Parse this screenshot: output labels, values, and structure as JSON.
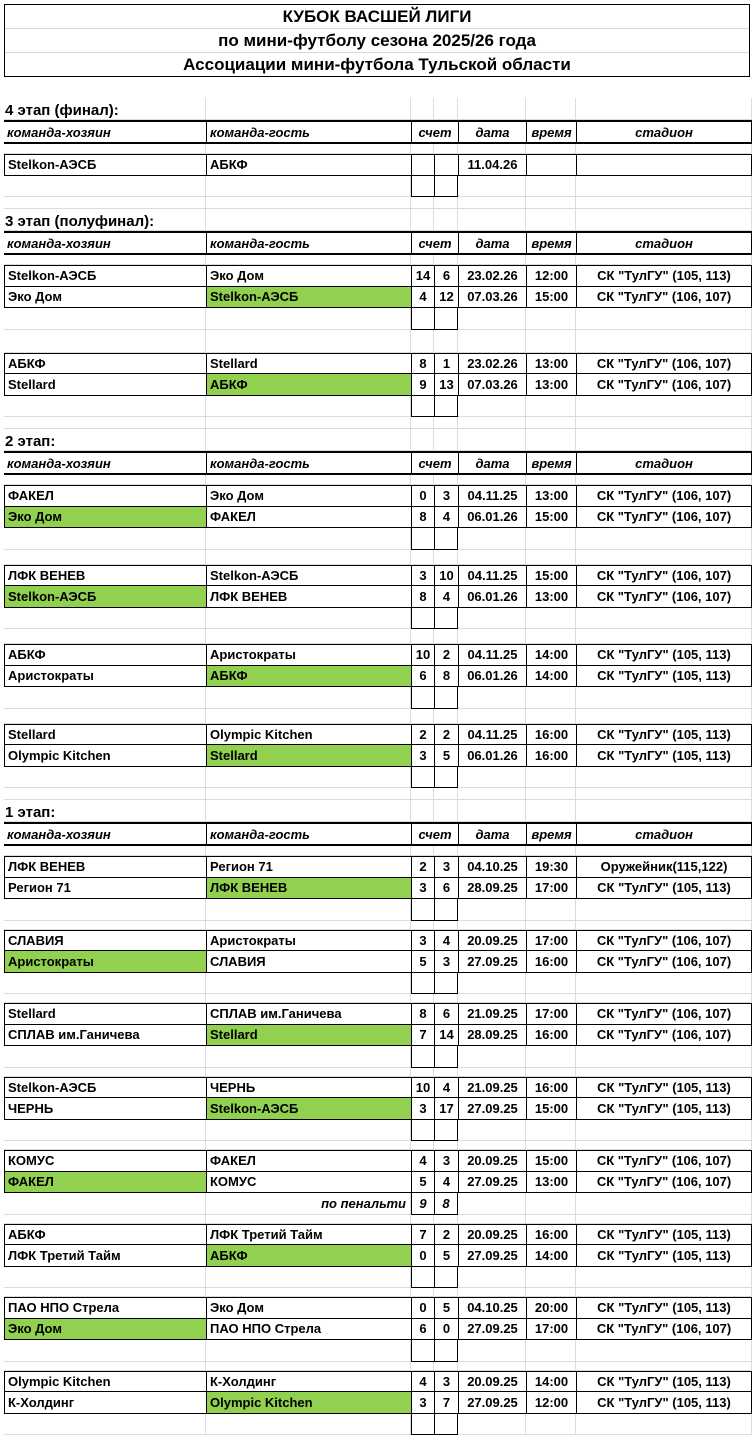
{
  "title": {
    "line1": "КУБОК ВАСШЕЙ ЛИГИ",
    "line2": "по мини-футболу сезона 2025/26 года",
    "line3": "Ассоциации мини-футбола Тульской области"
  },
  "columns": {
    "host": "команда-хозяин",
    "guest": "команда-гость",
    "score": "счет",
    "date": "дата",
    "time": "время",
    "stadium": "стадион"
  },
  "penalty_label": "по пенальти",
  "colors": {
    "winner_highlight": "#92D050",
    "gridline": "#dcdcdc",
    "border": "#000000"
  },
  "sections": [
    {
      "label": "4 этап (финал):",
      "pairs": [
        {
          "matches": [
            {
              "host": "Stelkon-АЭСБ",
              "guest": "АБКФ",
              "s1": "",
              "s2": "",
              "date": "11.04.26",
              "time": "",
              "stadium": "",
              "hl": null
            }
          ],
          "after": "scorebox"
        }
      ]
    },
    {
      "label": "3 этап (полуфинал):",
      "pairs": [
        {
          "matches": [
            {
              "host": "Stelkon-АЭСБ",
              "guest": "Эко Дом",
              "s1": "14",
              "s2": "6",
              "date": "23.02.26",
              "time": "12:00",
              "stadium": "СК \"ТулГУ\" (105, 113)",
              "hl": null
            },
            {
              "host": "Эко Дом",
              "guest": "Stelkon-АЭСБ",
              "s1": "4",
              "s2": "12",
              "date": "07.03.26",
              "time": "15:00",
              "stadium": "СК \"ТулГУ\" (106, 107)",
              "hl": "guest"
            }
          ],
          "after": "scorebox"
        },
        {
          "matches": [
            {
              "host": "АБКФ",
              "guest": "Stellard",
              "s1": "8",
              "s2": "1",
              "date": "23.02.26",
              "time": "13:00",
              "stadium": "СК \"ТулГУ\" (106, 107)",
              "hl": null
            },
            {
              "host": "Stellard",
              "guest": "АБКФ",
              "s1": "9",
              "s2": "13",
              "date": "07.03.26",
              "time": "13:00",
              "stadium": "СК \"ТулГУ\" (106, 107)",
              "hl": "guest"
            }
          ],
          "after": "scorebox"
        }
      ]
    },
    {
      "label": "2 этап:",
      "pairs": [
        {
          "matches": [
            {
              "host": "ФАКЕЛ",
              "guest": "Эко Дом",
              "s1": "0",
              "s2": "3",
              "date": "04.11.25",
              "time": "13:00",
              "stadium": "СК \"ТулГУ\" (106, 107)",
              "hl": null
            },
            {
              "host": "Эко Дом",
              "guest": "ФАКЕЛ",
              "s1": "8",
              "s2": "4",
              "date": "06.01.26",
              "time": "15:00",
              "stadium": "СК \"ТулГУ\" (106, 107)",
              "hl": "host"
            }
          ],
          "after": "scorebox"
        },
        {
          "matches": [
            {
              "host": "ЛФК ВЕНЕВ",
              "guest": "Stelkon-АЭСБ",
              "s1": "3",
              "s2": "10",
              "date": "04.11.25",
              "time": "15:00",
              "stadium": "СК \"ТулГУ\" (106, 107)",
              "hl": null
            },
            {
              "host": "Stelkon-АЭСБ",
              "guest": "ЛФК ВЕНЕВ",
              "s1": "8",
              "s2": "4",
              "date": "06.01.26",
              "time": "13:00",
              "stadium": "СК \"ТулГУ\" (106, 107)",
              "hl": "host"
            }
          ],
          "after": "scorebox"
        },
        {
          "matches": [
            {
              "host": "АБКФ",
              "guest": "Аристократы",
              "s1": "10",
              "s2": "2",
              "date": "04.11.25",
              "time": "14:00",
              "stadium": "СК \"ТулГУ\" (105, 113)",
              "hl": null
            },
            {
              "host": "Аристократы",
              "guest": "АБКФ",
              "s1": "6",
              "s2": "8",
              "date": "06.01.26",
              "time": "14:00",
              "stadium": "СК \"ТулГУ\" (105, 113)",
              "hl": "guest"
            }
          ],
          "after": "scorebox"
        },
        {
          "matches": [
            {
              "host": "Stellard",
              "guest": "Olympic Kitchen",
              "s1": "2",
              "s2": "2",
              "date": "04.11.25",
              "time": "16:00",
              "stadium": "СК \"ТулГУ\" (105, 113)",
              "hl": null
            },
            {
              "host": "Olympic Kitchen",
              "guest": "Stellard",
              "s1": "3",
              "s2": "5",
              "date": "06.01.26",
              "time": "16:00",
              "stadium": "СК \"ТулГУ\" (105, 113)",
              "hl": "guest"
            }
          ],
          "after": "scorebox"
        }
      ]
    },
    {
      "label": "1 этап:",
      "pairs": [
        {
          "matches": [
            {
              "host": "ЛФК ВЕНЕВ",
              "guest": "Регион 71",
              "s1": "2",
              "s2": "3",
              "date": "04.10.25",
              "time": "19:30",
              "stadium": "Оружейник(115,122)",
              "hl": null
            },
            {
              "host": "Регион 71",
              "guest": "ЛФК ВЕНЕВ",
              "s1": "3",
              "s2": "6",
              "date": "28.09.25",
              "time": "17:00",
              "stadium": "СК \"ТулГУ\" (105, 113)",
              "hl": "guest"
            }
          ],
          "after": "scorebox"
        },
        {
          "matches": [
            {
              "host": "СЛАВИЯ",
              "guest": "Аристократы",
              "s1": "3",
              "s2": "4",
              "date": "20.09.25",
              "time": "17:00",
              "stadium": "СК \"ТулГУ\" (106, 107)",
              "hl": null
            },
            {
              "host": "Аристократы",
              "guest": "СЛАВИЯ",
              "s1": "5",
              "s2": "3",
              "date": "27.09.25",
              "time": "16:00",
              "stadium": "СК \"ТулГУ\" (106, 107)",
              "hl": "host"
            }
          ],
          "after": "scorebox"
        },
        {
          "matches": [
            {
              "host": "Stellard",
              "guest": "СПЛАВ им.Ганичева",
              "s1": "8",
              "s2": "6",
              "date": "21.09.25",
              "time": "17:00",
              "stadium": "СК \"ТулГУ\" (106, 107)",
              "hl": null
            },
            {
              "host": "СПЛАВ им.Ганичева",
              "guest": "Stellard",
              "s1": "7",
              "s2": "14",
              "date": "28.09.25",
              "time": "16:00",
              "stadium": "СК \"ТулГУ\" (106, 107)",
              "hl": "guest"
            }
          ],
          "after": "scorebox"
        },
        {
          "matches": [
            {
              "host": "Stelkon-АЭСБ",
              "guest": "ЧЕРНЬ",
              "s1": "10",
              "s2": "4",
              "date": "21.09.25",
              "time": "16:00",
              "stadium": "СК \"ТулГУ\" (105, 113)",
              "hl": null
            },
            {
              "host": "ЧЕРНЬ",
              "guest": "Stelkon-АЭСБ",
              "s1": "3",
              "s2": "17",
              "date": "27.09.25",
              "time": "15:00",
              "stadium": "СК \"ТулГУ\" (105, 113)",
              "hl": "guest"
            }
          ],
          "after": "scorebox"
        },
        {
          "matches": [
            {
              "host": "КОМУС",
              "guest": "ФАКЕЛ",
              "s1": "4",
              "s2": "3",
              "date": "20.09.25",
              "time": "15:00",
              "stadium": "СК \"ТулГУ\" (106, 107)",
              "hl": null
            },
            {
              "host": "ФАКЕЛ",
              "guest": "КОМУС",
              "s1": "5",
              "s2": "4",
              "date": "27.09.25",
              "time": "13:00",
              "stadium": "СК \"ТулГУ\" (106, 107)",
              "hl": "host"
            }
          ],
          "after": "penalty",
          "penalty": {
            "s1": "9",
            "s2": "8"
          }
        },
        {
          "matches": [
            {
              "host": "АБКФ",
              "guest": "ЛФК Третий Тайм",
              "s1": "7",
              "s2": "2",
              "date": "20.09.25",
              "time": "16:00",
              "stadium": "СК \"ТулГУ\" (105, 113)",
              "hl": null
            },
            {
              "host": "ЛФК Третий Тайм",
              "guest": "АБКФ",
              "s1": "0",
              "s2": "5",
              "date": "27.09.25",
              "time": "14:00",
              "stadium": "СК \"ТулГУ\" (105, 113)",
              "hl": "guest"
            }
          ],
          "after": "scorebox"
        },
        {
          "matches": [
            {
              "host": "ПАО НПО Стрела",
              "guest": "Эко Дом",
              "s1": "0",
              "s2": "5",
              "date": "04.10.25",
              "time": "20:00",
              "stadium": "СК \"ТулГУ\" (105, 113)",
              "hl": null
            },
            {
              "host": "Эко Дом",
              "guest": "ПАО НПО Стрела",
              "s1": "6",
              "s2": "0",
              "date": "27.09.25",
              "time": "17:00",
              "stadium": "СК \"ТулГУ\" (106, 107)",
              "hl": "host"
            }
          ],
          "after": "scorebox"
        },
        {
          "matches": [
            {
              "host": "Olympic Kitchen",
              "guest": "К-Холдинг",
              "s1": "4",
              "s2": "3",
              "date": "20.09.25",
              "time": "14:00",
              "stadium": "СК \"ТулГУ\" (105, 113)",
              "hl": null
            },
            {
              "host": "К-Холдинг",
              "guest": "Olympic Kitchen",
              "s1": "3",
              "s2": "7",
              "date": "27.09.25",
              "time": "12:00",
              "stadium": "СК \"ТулГУ\" (105, 113)",
              "hl": "guest"
            }
          ],
          "after": "scorebox"
        }
      ]
    }
  ]
}
